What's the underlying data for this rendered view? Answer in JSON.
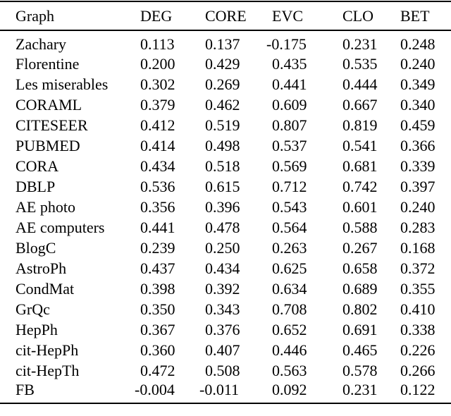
{
  "table": {
    "columns": [
      "Graph",
      "DEG",
      "CORE",
      "EVC",
      "CLO",
      "BET"
    ],
    "rows": [
      {
        "graph": "Zachary",
        "values": [
          "0.113",
          "0.137",
          "-0.175",
          "0.231",
          "0.248"
        ]
      },
      {
        "graph": "Florentine",
        "values": [
          "0.200",
          "0.429",
          "0.435",
          "0.535",
          "0.240"
        ]
      },
      {
        "graph": "Les miserables",
        "values": [
          "0.302",
          "0.269",
          "0.441",
          "0.444",
          "0.349"
        ]
      },
      {
        "graph": "CORAML",
        "values": [
          "0.379",
          "0.462",
          "0.609",
          "0.667",
          "0.340"
        ]
      },
      {
        "graph": "CITESEER",
        "values": [
          "0.412",
          "0.519",
          "0.807",
          "0.819",
          "0.459"
        ]
      },
      {
        "graph": "PUBMED",
        "values": [
          "0.414",
          "0.498",
          "0.537",
          "0.541",
          "0.366"
        ]
      },
      {
        "graph": "CORA",
        "values": [
          "0.434",
          "0.518",
          "0.569",
          "0.681",
          "0.339"
        ]
      },
      {
        "graph": "DBLP",
        "values": [
          "0.536",
          "0.615",
          "0.712",
          "0.742",
          "0.397"
        ]
      },
      {
        "graph": "AE photo",
        "values": [
          "0.356",
          "0.396",
          "0.543",
          "0.601",
          "0.240"
        ]
      },
      {
        "graph": "AE computers",
        "values": [
          "0.441",
          "0.478",
          "0.564",
          "0.588",
          "0.283"
        ]
      },
      {
        "graph": "BlogC",
        "values": [
          "0.239",
          "0.250",
          "0.263",
          "0.267",
          "0.168"
        ]
      },
      {
        "graph": "AstroPh",
        "values": [
          "0.437",
          "0.434",
          "0.625",
          "0.658",
          "0.372"
        ]
      },
      {
        "graph": "CondMat",
        "values": [
          "0.398",
          "0.392",
          "0.634",
          "0.689",
          "0.355"
        ]
      },
      {
        "graph": "GrQc",
        "values": [
          "0.350",
          "0.343",
          "0.708",
          "0.802",
          "0.410"
        ]
      },
      {
        "graph": "HepPh",
        "values": [
          "0.367",
          "0.376",
          "0.652",
          "0.691",
          "0.338"
        ]
      },
      {
        "graph": "cit-HepPh",
        "values": [
          "0.360",
          "0.407",
          "0.446",
          "0.465",
          "0.226"
        ]
      },
      {
        "graph": "cit-HepTh",
        "values": [
          "0.472",
          "0.508",
          "0.563",
          "0.578",
          "0.266"
        ]
      },
      {
        "graph": "FB",
        "values": [
          "-0.004",
          "-0.011",
          "0.092",
          "0.231",
          "0.122"
        ]
      }
    ]
  },
  "colors": {
    "background": "#ffffff",
    "text": "#000000",
    "rule": "#000000"
  }
}
